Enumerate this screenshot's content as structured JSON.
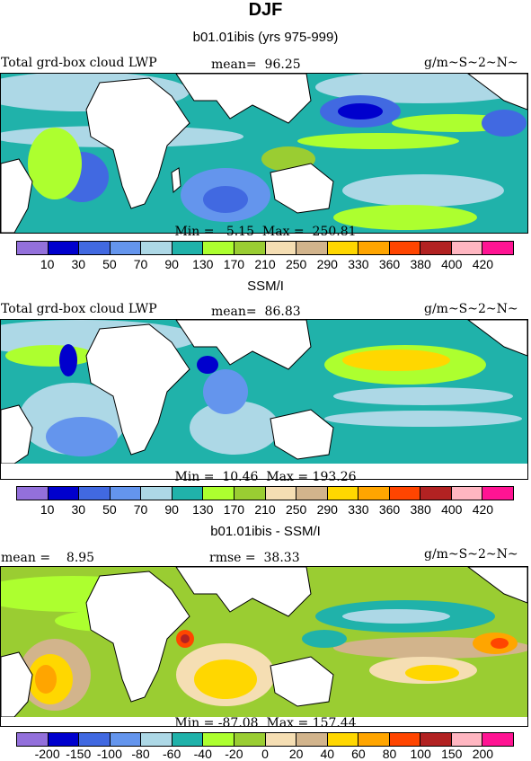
{
  "title": "DJF",
  "panels": [
    {
      "id": "model",
      "heading": "b01.01ibis (yrs 975-999)",
      "left_label": "Total grd-box cloud LWP",
      "stat_label": "mean=  96.25",
      "units": "g/m~S~2~N~",
      "minmax": "Min =   5.15  Max =  250.81",
      "tick_labels": [
        "10",
        "30",
        "50",
        "70",
        "90",
        "130",
        "170",
        "210",
        "250",
        "290",
        "330",
        "360",
        "380",
        "400",
        "420"
      ]
    },
    {
      "id": "obs",
      "heading": "SSM/I",
      "left_label": "Total grd-box cloud LWP",
      "stat_label": "mean=  86.83",
      "units": "g/m~S~2~N~",
      "minmax": "Min =  10.46  Max = 193.26",
      "tick_labels": [
        "10",
        "30",
        "50",
        "70",
        "90",
        "130",
        "170",
        "210",
        "250",
        "290",
        "330",
        "360",
        "380",
        "400",
        "420"
      ]
    },
    {
      "id": "diff",
      "heading": "b01.01ibis - SSM/I",
      "left_label": "mean =    8.95",
      "stat_label": "rmse =  38.33",
      "units": "g/m~S~2~N~",
      "minmax": "Min = -87.08  Max = 157.44",
      "tick_labels": [
        "-200",
        "-150",
        "-100",
        "-80",
        "-60",
        "-40",
        "-20",
        "0",
        "20",
        "40",
        "60",
        "80",
        "100",
        "150",
        "200"
      ]
    }
  ],
  "colorbar_colors": [
    "#9370DB",
    "#0000CD",
    "#4169E1",
    "#6495ED",
    "#ADD8E6",
    "#20B2AA",
    "#ADFF2F",
    "#9ACD32",
    "#F5DEB3",
    "#D2B48C",
    "#FFD700",
    "#FFA500",
    "#FF4500",
    "#B22222",
    "#FFB6C1",
    "#FF1493"
  ]
}
